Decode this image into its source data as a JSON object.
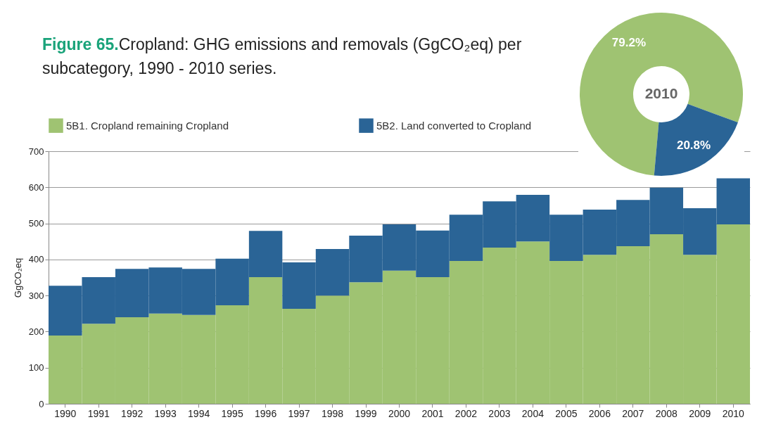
{
  "chart_data": [
    {
      "type": "bar",
      "title": "Figure 65.",
      "subtitle": "Cropland: GHG emissions and removals (GgCO₂eq) per subcategory, 1990 - 2010 series.",
      "ylabel": "GgCO₂eq",
      "stacked": true,
      "grid": "y",
      "legend": "top",
      "categories": [
        "1990",
        "1991",
        "1992",
        "1993",
        "1994",
        "1995",
        "1996",
        "1997",
        "1998",
        "1999",
        "2000",
        "2001",
        "2002",
        "2003",
        "2004",
        "2005",
        "2006",
        "2007",
        "2008",
        "2009",
        "2010"
      ],
      "series": [
        {
          "name": "5B1. Cropland remaining Cropland",
          "color": "#9fc372",
          "values": [
            189,
            222,
            240,
            250,
            246,
            273,
            351,
            263,
            300,
            337,
            369,
            351,
            396,
            433,
            450,
            396,
            413,
            437,
            470,
            413,
            497
          ]
        },
        {
          "name": "5B2. Land converted to Cropland",
          "color": "#2a6496",
          "values": [
            138,
            129,
            134,
            128,
            128,
            129,
            128,
            129,
            129,
            129,
            128,
            129,
            128,
            128,
            129,
            128,
            125,
            128,
            129,
            129,
            128
          ]
        }
      ],
      "ylim": [
        0,
        700
      ],
      "yticks": [
        0,
        100,
        200,
        300,
        400,
        500,
        600,
        700
      ]
    },
    {
      "type": "donut",
      "categories": [
        null,
        null
      ],
      "values": [
        79.2,
        20.8
      ],
      "colors": [
        "#9fc372",
        "#2a6496"
      ],
      "value_labels": [
        "79.2%",
        "20.8%"
      ],
      "annotations": [
        "2010"
      ]
    }
  ]
}
